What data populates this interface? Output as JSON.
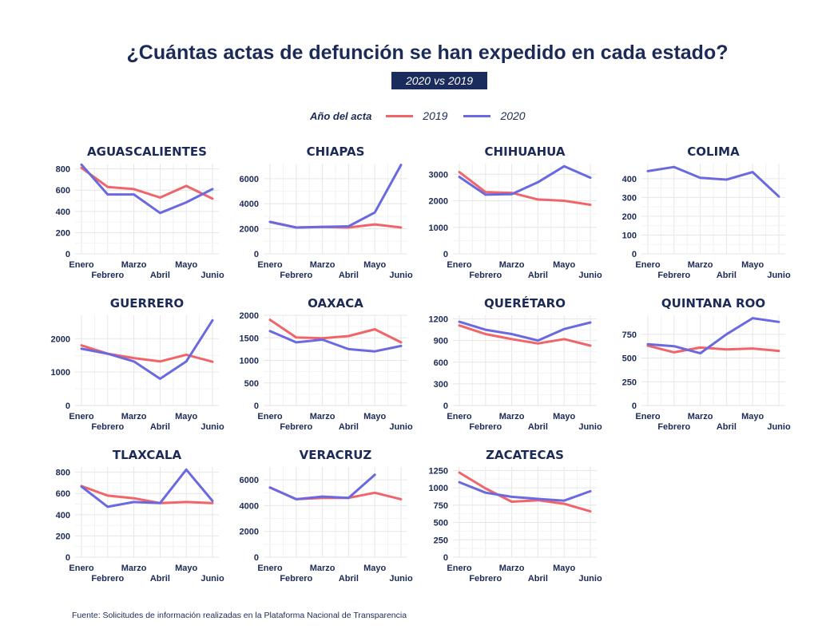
{
  "title": "¿Cuántas actas de defunción se han expedido en cada estado?",
  "subtitle": "2020 vs 2019",
  "legend": {
    "title": "Año del acta",
    "items": [
      {
        "label": "2019",
        "color": "#f0656a"
      },
      {
        "label": "2020",
        "color": "#6b69e0"
      }
    ]
  },
  "source": "Fuente: Solicitudes de información realizadas en la Plataforma Nacional de Transparencia",
  "chart_data": [
    {
      "type": "line",
      "title": "AGUASCALIENTES",
      "categories": [
        "Enero",
        "Febrero",
        "Marzo",
        "Abril",
        "Mayo",
        "Junio"
      ],
      "ylim": [
        0,
        850
      ],
      "yticks": [
        0,
        200,
        400,
        600,
        800
      ],
      "series": [
        {
          "name": "2019",
          "values": [
            810,
            630,
            610,
            530,
            640,
            520
          ]
        },
        {
          "name": "2020",
          "values": [
            840,
            560,
            560,
            385,
            485,
            610
          ]
        }
      ]
    },
    {
      "type": "line",
      "title": "CHIAPAS",
      "categories": [
        "Enero",
        "Febrero",
        "Marzo",
        "Abril",
        "Mayo",
        "Junio"
      ],
      "ylim": [
        0,
        7200
      ],
      "yticks": [
        0,
        2000,
        4000,
        6000
      ],
      "series": [
        {
          "name": "2019",
          "values": [
            2550,
            2100,
            2150,
            2100,
            2350,
            2100
          ]
        },
        {
          "name": "2020",
          "values": [
            2550,
            2100,
            2150,
            2200,
            3300,
            7100
          ]
        }
      ]
    },
    {
      "type": "line",
      "title": "CHIHUAHUA",
      "categories": [
        "Enero",
        "Febrero",
        "Marzo",
        "Abril",
        "Mayo",
        "Junio"
      ],
      "ylim": [
        0,
        3400
      ],
      "yticks": [
        0,
        1000,
        2000,
        3000
      ],
      "series": [
        {
          "name": "2019",
          "values": [
            3080,
            2330,
            2300,
            2050,
            2000,
            1850
          ]
        },
        {
          "name": "2020",
          "values": [
            2900,
            2230,
            2250,
            2700,
            3300,
            2870
          ]
        }
      ]
    },
    {
      "type": "line",
      "title": "COLIMA",
      "categories": [
        "Enero",
        "Febrero",
        "Marzo",
        "Abril",
        "Mayo",
        "Junio"
      ],
      "ylim": [
        0,
        480
      ],
      "yticks": [
        0,
        100,
        200,
        300,
        400
      ],
      "series": [
        {
          "name": "2020",
          "values": [
            440,
            462,
            405,
            395,
            435,
            305
          ]
        }
      ]
    },
    {
      "type": "line",
      "title": "GUERRERO",
      "categories": [
        "Enero",
        "Febrero",
        "Marzo",
        "Abril",
        "Mayo",
        "Junio"
      ],
      "ylim": [
        0,
        2700
      ],
      "yticks": [
        0,
        1000,
        2000
      ],
      "series": [
        {
          "name": "2019",
          "values": [
            1800,
            1550,
            1420,
            1320,
            1520,
            1310
          ]
        },
        {
          "name": "2020",
          "values": [
            1700,
            1550,
            1320,
            800,
            1320,
            2550
          ]
        }
      ]
    },
    {
      "type": "line",
      "title": "OAXACA",
      "categories": [
        "Enero",
        "Febrero",
        "Marzo",
        "Abril",
        "Mayo",
        "Junio"
      ],
      "ylim": [
        0,
        2000
      ],
      "yticks": [
        0,
        500,
        1000,
        1500,
        2000
      ],
      "series": [
        {
          "name": "2019",
          "values": [
            1900,
            1510,
            1490,
            1540,
            1690,
            1400
          ]
        },
        {
          "name": "2020",
          "values": [
            1650,
            1400,
            1460,
            1250,
            1200,
            1320
          ]
        }
      ]
    },
    {
      "type": "line",
      "title": "QUERÉTARO",
      "categories": [
        "Enero",
        "Febrero",
        "Marzo",
        "Abril",
        "Mayo",
        "Junio"
      ],
      "ylim": [
        0,
        1250
      ],
      "yticks": [
        0,
        300,
        600,
        900,
        1200
      ],
      "series": [
        {
          "name": "2019",
          "values": [
            1110,
            990,
            920,
            860,
            920,
            830
          ]
        },
        {
          "name": "2020",
          "values": [
            1160,
            1050,
            990,
            900,
            1060,
            1150
          ]
        }
      ]
    },
    {
      "type": "line",
      "title": "QUINTANA ROO",
      "categories": [
        "Enero",
        "Febrero",
        "Marzo",
        "Abril",
        "Mayo",
        "Junio"
      ],
      "ylim": [
        0,
        950
      ],
      "yticks": [
        0,
        250,
        500,
        750
      ],
      "series": [
        {
          "name": "2019",
          "values": [
            630,
            560,
            610,
            590,
            600,
            575
          ]
        },
        {
          "name": "2020",
          "values": [
            645,
            625,
            550,
            750,
            920,
            880
          ]
        }
      ]
    },
    {
      "type": "line",
      "title": "TLAXCALA",
      "categories": [
        "Enero",
        "Febrero",
        "Marzo",
        "Abril",
        "Mayo",
        "Junio"
      ],
      "ylim": [
        0,
        850
      ],
      "yticks": [
        0,
        200,
        400,
        600,
        800
      ],
      "series": [
        {
          "name": "2019",
          "values": [
            670,
            580,
            555,
            510,
            520,
            510
          ]
        },
        {
          "name": "2020",
          "values": [
            665,
            475,
            520,
            510,
            825,
            530
          ]
        }
      ]
    },
    {
      "type": "line",
      "title": "VERACRUZ",
      "categories": [
        "Enero",
        "Febrero",
        "Marzo",
        "Abril",
        "Mayo",
        "Junio"
      ],
      "ylim": [
        0,
        7000
      ],
      "yticks": [
        0,
        2000,
        4000,
        6000
      ],
      "series": [
        {
          "name": "2019",
          "values": [
            5400,
            4500,
            4600,
            4600,
            5000,
            4500
          ]
        },
        {
          "name": "2020",
          "values": [
            5400,
            4500,
            4700,
            4600,
            6400,
            null
          ]
        }
      ]
    },
    {
      "type": "line",
      "title": "ZACATECAS",
      "categories": [
        "Enero",
        "Febrero",
        "Marzo",
        "Abril",
        "Mayo",
        "Junio"
      ],
      "ylim": [
        0,
        1300
      ],
      "yticks": [
        0,
        250,
        500,
        750,
        1000,
        1250
      ],
      "series": [
        {
          "name": "2019",
          "values": [
            1220,
            990,
            800,
            820,
            770,
            660
          ]
        },
        {
          "name": "2020",
          "values": [
            1080,
            930,
            870,
            840,
            815,
            950
          ]
        }
      ]
    }
  ]
}
